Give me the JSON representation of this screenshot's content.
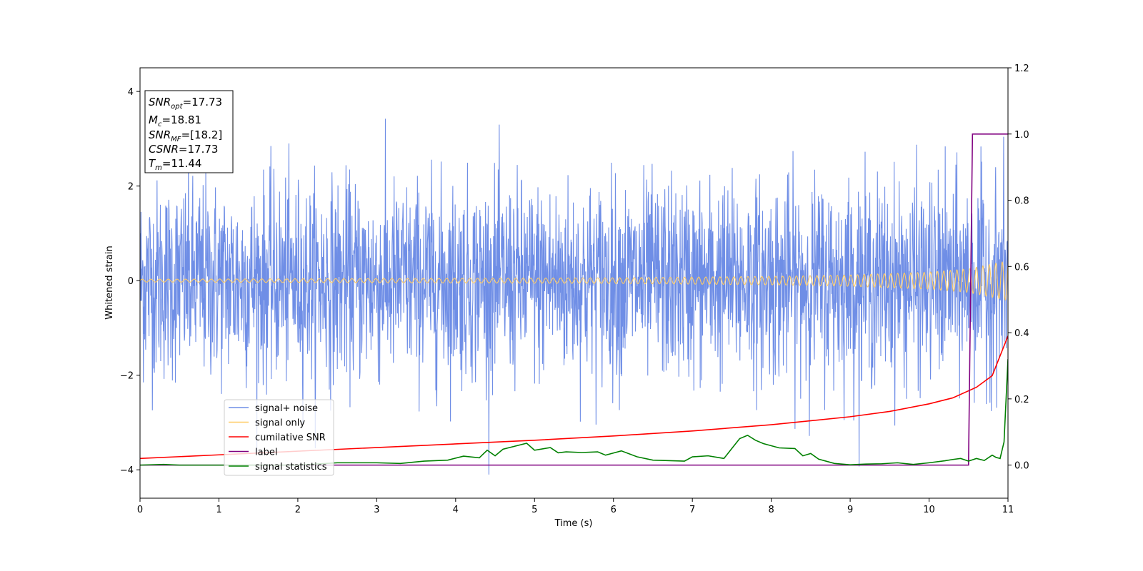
{
  "chart_data": {
    "type": "line",
    "title": "",
    "xlabel": "Time (s)",
    "ylabel": "Whitened strain",
    "xlim": [
      0,
      11
    ],
    "ylim_left": [
      -4.6,
      4.5
    ],
    "ylim_right": [
      -0.1,
      1.2
    ],
    "x_ticks": [
      "0",
      "1",
      "2",
      "3",
      "4",
      "5",
      "6",
      "7",
      "8",
      "9",
      "10",
      "11"
    ],
    "y_ticks_left": [
      "−4",
      "−2",
      "0",
      "2",
      "4"
    ],
    "y_ticks_right": [
      "0.0",
      "0.2",
      "0.4",
      "0.6",
      "0.8",
      "1.0",
      "1.2"
    ],
    "grid": false,
    "legend_position": "lower-left",
    "series": [
      {
        "name": "signal+ noise",
        "axis": "left",
        "color": "#6f8ee6",
        "description_values": {
          "typical_amplitude": 1.9,
          "max": 3.5,
          "min": -4.15
        }
      },
      {
        "name": "signal only",
        "axis": "left",
        "color": "#ffcc66",
        "envelope": {
          "x": [
            0,
            2,
            4,
            6,
            8,
            9,
            10,
            10.5,
            11
          ],
          "amplitude": [
            0.03,
            0.04,
            0.05,
            0.06,
            0.09,
            0.12,
            0.18,
            0.25,
            0.42
          ]
        }
      },
      {
        "name": "cumilative SNR",
        "axis": "right",
        "color": "#ff0000",
        "x": [
          0,
          1,
          2,
          3,
          4,
          5,
          6,
          7,
          8,
          9,
          9.5,
          10,
          10.3,
          10.6,
          10.8,
          11
        ],
        "y": [
          0.02,
          0.031,
          0.042,
          0.053,
          0.064,
          0.075,
          0.088,
          0.103,
          0.122,
          0.146,
          0.162,
          0.185,
          0.203,
          0.235,
          0.27,
          0.39
        ]
      },
      {
        "name": "label",
        "axis": "right",
        "color": "#800080",
        "x": [
          0,
          10.5,
          10.55,
          11
        ],
        "y": [
          0,
          0,
          1,
          1
        ]
      },
      {
        "name": "signal statistics",
        "axis": "right",
        "color": "#008000",
        "x": [
          0,
          0.3,
          0.5,
          1,
          1.5,
          2,
          2.5,
          3,
          3.3,
          3.6,
          3.9,
          4.1,
          4.3,
          4.4,
          4.5,
          4.6,
          4.9,
          5,
          5.2,
          5.3,
          5.4,
          5.6,
          5.8,
          5.9,
          6.1,
          6.3,
          6.5,
          6.9,
          7,
          7.2,
          7.4,
          7.5,
          7.6,
          7.7,
          7.8,
          7.9,
          8.1,
          8.3,
          8.4,
          8.5,
          8.6,
          8.8,
          9,
          9.2,
          9.4,
          9.6,
          9.8,
          10,
          10.2,
          10.3,
          10.4,
          10.5,
          10.6,
          10.7,
          10.8,
          10.85,
          10.9,
          10.95,
          11
        ],
        "y": [
          0.0,
          0.002,
          0.0,
          0.0,
          0.0,
          0.0,
          0.007,
          0.007,
          0.005,
          0.012,
          0.015,
          0.027,
          0.022,
          0.045,
          0.028,
          0.048,
          0.066,
          0.045,
          0.053,
          0.037,
          0.04,
          0.038,
          0.04,
          0.03,
          0.043,
          0.025,
          0.015,
          0.012,
          0.025,
          0.028,
          0.02,
          0.05,
          0.08,
          0.09,
          0.075,
          0.065,
          0.052,
          0.05,
          0.028,
          0.035,
          0.018,
          0.005,
          0.001,
          0.003,
          0.004,
          0.007,
          0.002,
          0.007,
          0.013,
          0.017,
          0.02,
          0.012,
          0.02,
          0.014,
          0.03,
          0.023,
          0.02,
          0.07,
          0.32
        ]
      }
    ],
    "annotation_box": {
      "location": "top-left",
      "lines": [
        {
          "var": "SNR",
          "sub": "opt",
          "value": "=17.73"
        },
        {
          "var": "M",
          "sub": "c",
          "value": "=18.81"
        },
        {
          "var": "SNR",
          "sub": "MF",
          "value": "=[18.2]"
        },
        {
          "var": "CSNR",
          "sub": "",
          "value": "=17.73"
        },
        {
          "var": "T",
          "sub": "m",
          "value": "=11.44"
        }
      ]
    }
  }
}
